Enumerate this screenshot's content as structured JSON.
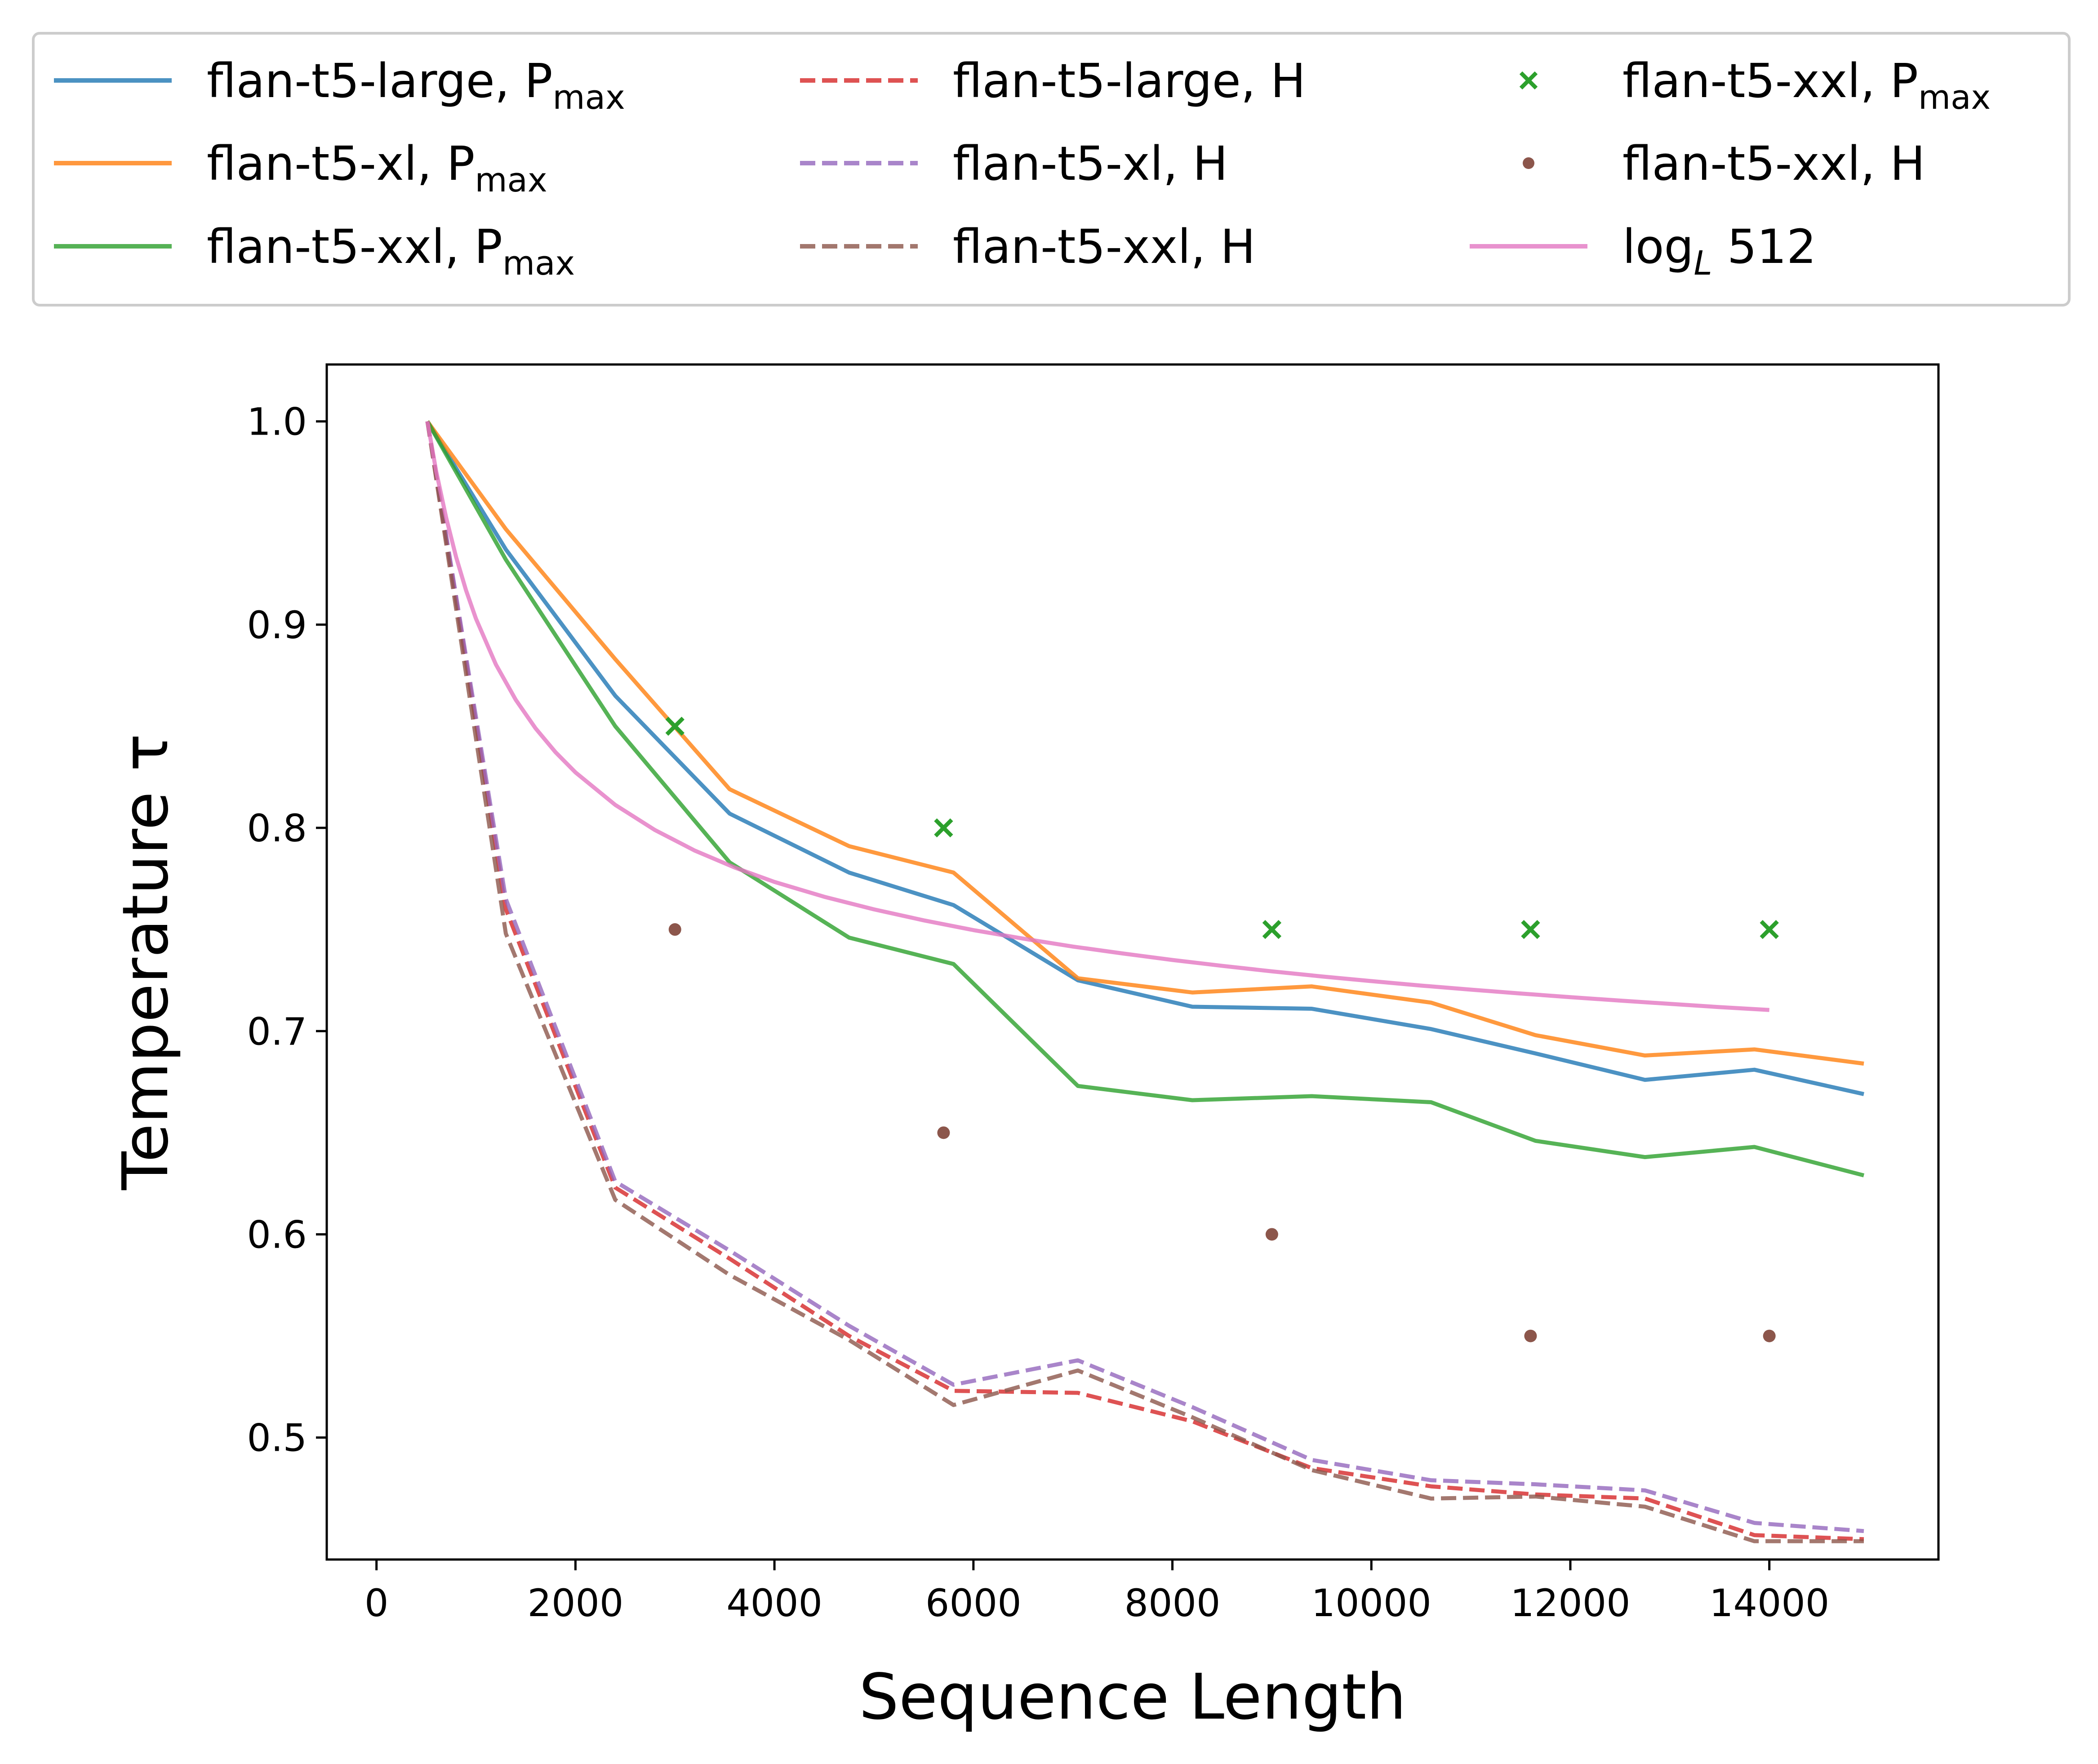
{
  "chart_data": {
    "type": "line",
    "xlabel": "Sequence Length",
    "ylabel": "Temperature τ",
    "xlim": [
      -500,
      15700
    ],
    "ylim": [
      0.44,
      1.028
    ],
    "xticks": [
      0,
      2000,
      4000,
      6000,
      8000,
      10000,
      12000,
      14000
    ],
    "yticks": [
      0.5,
      0.6,
      0.7,
      0.8,
      0.9,
      1.0
    ],
    "grid": false,
    "legend": {
      "placement": "above the plot, 3 columns"
    },
    "series": [
      {
        "name": "flan-t5-large, P",
        "name_sub": "max",
        "kind": "line",
        "style": "solid",
        "color": "#1f77b4",
        "x": [
          512,
          1300,
          2400,
          3550,
          4750,
          5800,
          7050,
          8200,
          9400,
          10600,
          11650,
          12750,
          13850,
          14950
        ],
        "y": [
          1.0,
          0.937,
          0.865,
          0.807,
          0.778,
          0.762,
          0.725,
          0.712,
          0.711,
          0.701,
          0.689,
          0.676,
          0.681,
          0.669
        ]
      },
      {
        "name": "flan-t5-xl, P",
        "name_sub": "max",
        "kind": "line",
        "style": "solid",
        "color": "#ff7f0e",
        "x": [
          512,
          1300,
          2400,
          3550,
          4750,
          5800,
          7050,
          8200,
          9400,
          10600,
          11650,
          12750,
          13850,
          14950
        ],
        "y": [
          1.0,
          0.947,
          0.883,
          0.819,
          0.791,
          0.778,
          0.726,
          0.719,
          0.722,
          0.714,
          0.698,
          0.688,
          0.691,
          0.684
        ]
      },
      {
        "name": "flan-t5-xxl, P",
        "name_sub": "max",
        "kind": "line",
        "style": "solid",
        "color": "#2ca02c",
        "x": [
          512,
          1300,
          2400,
          3550,
          4750,
          5800,
          7050,
          8200,
          9400,
          10600,
          11650,
          12750,
          13850,
          14950
        ],
        "y": [
          1.0,
          0.932,
          0.85,
          0.783,
          0.746,
          0.733,
          0.673,
          0.666,
          0.668,
          0.665,
          0.646,
          0.638,
          0.643,
          0.629
        ]
      },
      {
        "name": "flan-t5-large, H",
        "kind": "line",
        "style": "dashed",
        "color": "#d62728",
        "x": [
          512,
          1300,
          2400,
          3550,
          4750,
          5800,
          7050,
          8200,
          9400,
          10600,
          11650,
          12750,
          13850,
          14950
        ],
        "y": [
          1.0,
          0.76,
          0.623,
          0.588,
          0.55,
          0.523,
          0.522,
          0.508,
          0.485,
          0.476,
          0.472,
          0.47,
          0.452,
          0.45
        ]
      },
      {
        "name": "flan-t5-xl, H",
        "kind": "line",
        "style": "dashed",
        "color": "#9467bd",
        "x": [
          512,
          1300,
          2400,
          3550,
          4750,
          5800,
          7050,
          8200,
          9400,
          10600,
          11650,
          12750,
          13850,
          14950
        ],
        "y": [
          1.0,
          0.765,
          0.626,
          0.592,
          0.555,
          0.526,
          0.538,
          0.515,
          0.489,
          0.479,
          0.477,
          0.474,
          0.458,
          0.454
        ]
      },
      {
        "name": "flan-t5-xxl, H",
        "kind": "line",
        "style": "dashed",
        "color": "#8c564b",
        "x": [
          512,
          1300,
          2400,
          3550,
          4750,
          5800,
          7050,
          8200,
          9400,
          10600,
          11650,
          12750,
          13850,
          14950
        ],
        "y": [
          1.0,
          0.748,
          0.617,
          0.58,
          0.548,
          0.516,
          0.533,
          0.51,
          0.484,
          0.47,
          0.471,
          0.466,
          0.449,
          0.449
        ]
      },
      {
        "name": "flan-t5-xxl, P",
        "name_sub": "max",
        "kind": "marker",
        "marker": "x",
        "color": "#2ca02c",
        "x": [
          3000,
          5700,
          9000,
          11600,
          14000
        ],
        "y": [
          0.85,
          0.8,
          0.75,
          0.75,
          0.75
        ]
      },
      {
        "name": "flan-t5-xxl, H",
        "kind": "marker",
        "marker": "dot",
        "color": "#8c564b",
        "x": [
          3000,
          5700,
          9000,
          11600,
          14000
        ],
        "y": [
          0.75,
          0.65,
          0.6,
          0.55,
          0.55
        ]
      },
      {
        "name": "log",
        "name_sub": "L",
        "name_suffix": " 512",
        "kind": "line",
        "style": "solid",
        "color": "#e377c2",
        "x": [
          512,
          600,
          700,
          800,
          900,
          1000,
          1200,
          1400,
          1600,
          1800,
          2000,
          2400,
          2800,
          3200,
          3600,
          4000,
          4500,
          5000,
          5500,
          6000,
          6500,
          7000,
          7500,
          8000,
          8500,
          9000,
          9500,
          10000,
          10500,
          11000,
          11500,
          12000,
          12500,
          13000,
          13500,
          14000
        ],
        "y": [
          1.0,
          0.9754,
          0.9527,
          0.9333,
          0.9169,
          0.9029,
          0.8804,
          0.863,
          0.8489,
          0.8372,
          0.8273,
          0.8113,
          0.7989,
          0.7888,
          0.7805,
          0.7734,
          0.7661,
          0.7599,
          0.7545,
          0.7497,
          0.7455,
          0.7416,
          0.7382,
          0.735,
          0.7321,
          0.7294,
          0.7269,
          0.7246,
          0.7224,
          0.7204,
          0.7185,
          0.7167,
          0.715,
          0.7134,
          0.7118,
          0.7104
        ]
      }
    ]
  }
}
